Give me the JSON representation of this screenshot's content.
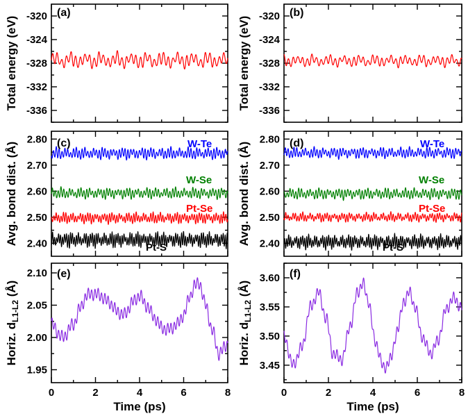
{
  "chart_data": [
    {
      "panel_label": "(a)",
      "type": "line",
      "ylabel": "Total energy (eV)",
      "xlabel": "",
      "xlim": [
        0,
        8
      ],
      "ylim": [
        -338,
        -318
      ],
      "xticks": [],
      "yticks": [
        -320,
        -324,
        -328,
        -332,
        -336
      ],
      "ytick_labels": [
        "-320",
        "-324",
        "-328",
        "-332",
        "-336"
      ],
      "series": [
        {
          "name": "Total energy",
          "color": "#ff0000",
          "mean": -327.5,
          "amp": 1.2,
          "period": 0.21,
          "amp2": 0.5
        }
      ]
    },
    {
      "panel_label": "(b)",
      "type": "line",
      "ylabel": "Total energy (eV)",
      "xlabel": "",
      "xlim": [
        0,
        8
      ],
      "ylim": [
        -338,
        -318
      ],
      "xticks": [],
      "yticks": [
        -320,
        -324,
        -328,
        -332,
        -336
      ],
      "ytick_labels": [
        "-320",
        "-324",
        "-328",
        "-332",
        "-336"
      ],
      "series": [
        {
          "name": "Total energy",
          "color": "#ff0000",
          "mean": -327.6,
          "amp": 0.9,
          "period": 0.21,
          "amp2": 0.35
        }
      ]
    },
    {
      "panel_label": "(c)",
      "type": "line",
      "ylabel": "Avg. bond dist. (Å)",
      "xlabel": "",
      "xlim": [
        0,
        8
      ],
      "ylim": [
        2.35,
        2.83
      ],
      "xticks": [],
      "yticks": [
        2.4,
        2.5,
        2.6,
        2.7,
        2.8
      ],
      "ytick_labels": [
        "2.40",
        "2.50",
        "2.60",
        "2.70",
        "2.80"
      ],
      "series": [
        {
          "name": "W-Te",
          "color": "#0000ff",
          "mean": 2.745,
          "amp": 0.022,
          "period": 0.13,
          "amp2": 0.006
        },
        {
          "name": "W-Se",
          "color": "#008000",
          "mean": 2.592,
          "amp": 0.02,
          "period": 0.13,
          "amp2": 0.006
        },
        {
          "name": "Pt-Se",
          "color": "#ff0000",
          "mean": 2.497,
          "amp": 0.02,
          "period": 0.11,
          "amp2": 0.006
        },
        {
          "name": "Pt-S",
          "color": "#000000",
          "mean": 2.413,
          "amp": 0.028,
          "period": 0.09,
          "amp2": 0.008
        }
      ]
    },
    {
      "panel_label": "(d)",
      "type": "line",
      "ylabel": "Avg. bond dist. (Å)",
      "xlabel": "",
      "xlim": [
        0,
        8
      ],
      "ylim": [
        2.35,
        2.83
      ],
      "xticks": [],
      "yticks": [
        2.4,
        2.5,
        2.6,
        2.7,
        2.8
      ],
      "ytick_labels": [
        "2.40",
        "2.50",
        "2.60",
        "2.70",
        "2.80"
      ],
      "series": [
        {
          "name": "W-Te",
          "color": "#0000ff",
          "mean": 2.747,
          "amp": 0.02,
          "period": 0.13,
          "amp2": 0.006
        },
        {
          "name": "W-Se",
          "color": "#008000",
          "mean": 2.59,
          "amp": 0.02,
          "period": 0.13,
          "amp2": 0.006
        },
        {
          "name": "Pt-Se",
          "color": "#ff0000",
          "mean": 2.5,
          "amp": 0.016,
          "period": 0.11,
          "amp2": 0.006
        },
        {
          "name": "Pt-S",
          "color": "#000000",
          "mean": 2.405,
          "amp": 0.026,
          "period": 0.09,
          "amp2": 0.008
        }
      ]
    },
    {
      "panel_label": "(e)",
      "type": "line",
      "ylabel": "Horiz. d",
      "ylabel_sub": "L1-L2",
      "ylabel_unit": " (Å)",
      "xlabel": "Time (ps)",
      "xlim": [
        0,
        8
      ],
      "ylim": [
        1.93,
        2.115
      ],
      "xticks": [
        0,
        2,
        4,
        6,
        8
      ],
      "xtick_labels": [
        "0",
        "2",
        "4",
        "6",
        "8"
      ],
      "yticks": [
        1.95,
        2.0,
        2.05,
        2.1
      ],
      "ytick_labels": [
        "1.95",
        "2.00",
        "2.05",
        "2.10"
      ],
      "series": [
        {
          "name": "Horiz. d L1-L2",
          "color": "#8a2be2",
          "x": [
            0,
            0.5,
            1,
            1.3,
            1.6,
            1.9,
            2.2,
            2.6,
            3.0,
            3.3,
            3.7,
            4.0,
            4.3,
            4.7,
            5.0,
            5.3,
            5.7,
            6.0,
            6.3,
            6.5,
            6.7,
            7.0,
            7.3,
            7.6,
            8.0
          ],
          "y": [
            2.02,
            2.0,
            2.02,
            2.045,
            2.065,
            2.068,
            2.065,
            2.055,
            2.04,
            2.035,
            2.055,
            2.065,
            2.05,
            2.03,
            2.015,
            2.012,
            2.02,
            2.035,
            2.065,
            2.08,
            2.085,
            2.05,
            2.01,
            1.975,
            1.99
          ],
          "ripple": 0.008,
          "ripple_period": 0.15
        }
      ]
    },
    {
      "panel_label": "(f)",
      "type": "line",
      "ylabel": "Horiz. d",
      "ylabel_sub": "L1-L2",
      "ylabel_unit": " (Å)",
      "xlabel": "Time (ps)",
      "xlim": [
        0,
        8
      ],
      "ylim": [
        3.42,
        3.625
      ],
      "xticks": [
        0,
        2,
        4,
        6,
        8
      ],
      "xtick_labels": [
        "0",
        "2",
        "4",
        "6",
        "8"
      ],
      "yticks": [
        3.45,
        3.5,
        3.55,
        3.6
      ],
      "ytick_labels": [
        "3.45",
        "3.50",
        "3.55",
        "3.60"
      ],
      "series": [
        {
          "name": "Horiz. d L1-L2",
          "color": "#8a2be2",
          "x": [
            0,
            0.4,
            0.8,
            1.2,
            1.55,
            1.9,
            2.2,
            2.6,
            3.0,
            3.3,
            3.55,
            3.8,
            4.1,
            4.5,
            4.8,
            5.1,
            5.4,
            5.65,
            5.9,
            6.2,
            6.6,
            6.9,
            7.3,
            7.6,
            8.0
          ],
          "y": [
            3.5,
            3.45,
            3.48,
            3.55,
            3.575,
            3.53,
            3.47,
            3.46,
            3.52,
            3.575,
            3.59,
            3.56,
            3.49,
            3.445,
            3.46,
            3.51,
            3.56,
            3.575,
            3.55,
            3.5,
            3.47,
            3.49,
            3.545,
            3.565,
            3.55
          ],
          "ripple": 0.008,
          "ripple_period": 0.15
        }
      ]
    }
  ]
}
